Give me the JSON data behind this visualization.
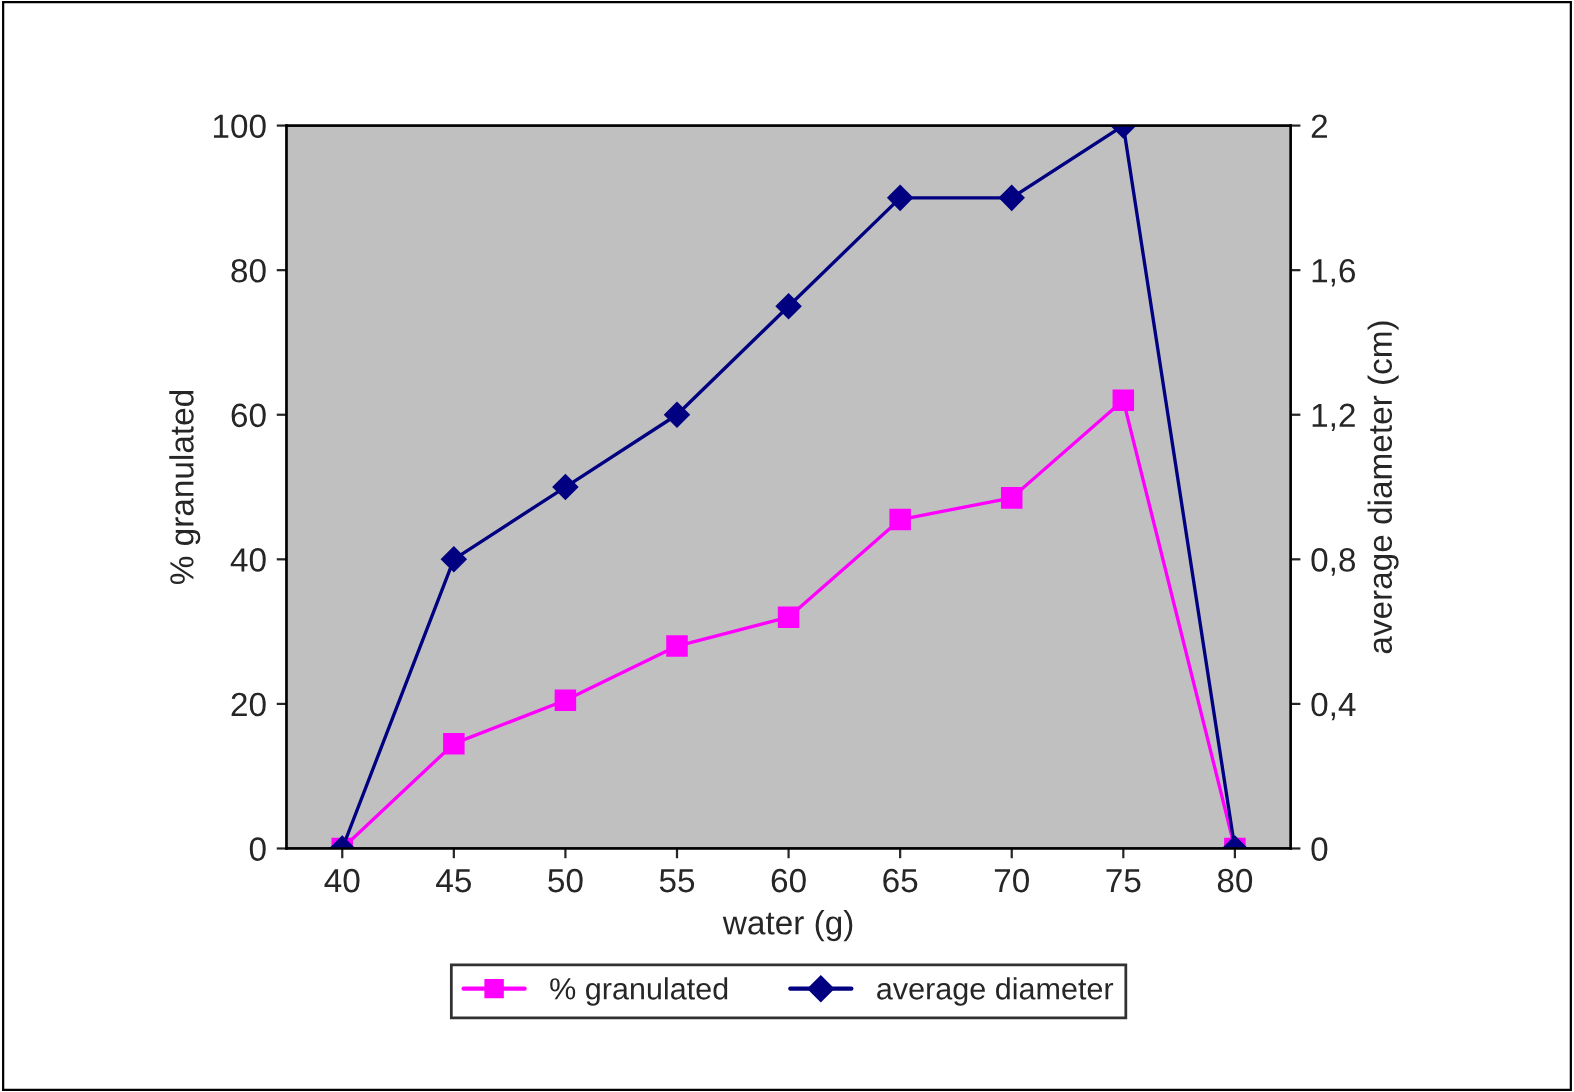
{
  "chart_data": {
    "type": "line",
    "xlabel": "water (g)",
    "ylabel": "% granulated",
    "y2label": "average diameter (cm)",
    "categories": [
      "40",
      "45",
      "50",
      "55",
      "60",
      "65",
      "70",
      "75",
      "80"
    ],
    "series": [
      {
        "name": "% granulated",
        "color": "#ff00ff",
        "marker": "square",
        "values": [
          0,
          14.5,
          20.5,
          28,
          32,
          45.5,
          48.5,
          62,
          0
        ]
      },
      {
        "name": "average diameter",
        "color": "#000080",
        "marker": "diamond",
        "axis": "y2",
        "values": [
          0,
          0.8,
          1.0,
          1.2,
          1.5,
          1.8,
          1.8,
          2.0,
          0
        ]
      }
    ],
    "ylim": [
      0,
      100
    ],
    "yticks": [
      0,
      20,
      40,
      60,
      80,
      100
    ],
    "y2lim": [
      0,
      2
    ],
    "y2ticks": [
      0,
      {
        "value": 0.4,
        "label": "0,4"
      },
      {
        "value": 0.8,
        "label": "0,8"
      },
      {
        "value": 1.2,
        "label": "1,2"
      },
      {
        "value": 1.6,
        "label": "1,6"
      },
      2
    ],
    "grid": false,
    "legend": "bottom",
    "line_style": "solid"
  }
}
